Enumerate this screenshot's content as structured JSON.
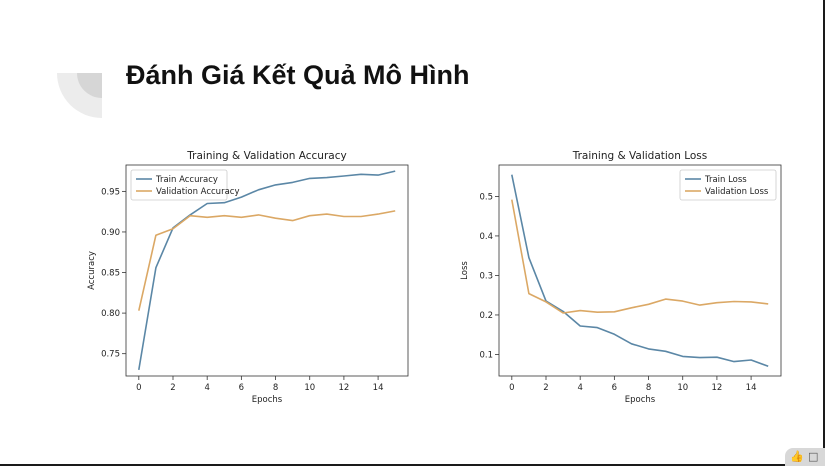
{
  "slide": {
    "title": "Đánh Giá Kết Quả Mô Hình"
  },
  "colors": {
    "train": "#5b87a6",
    "validation": "#dba865",
    "deco_light": "#ececec",
    "deco_dark": "#d6d6d6"
  },
  "icons": {
    "corner_left": "thumbs-up-icon",
    "corner_right": "comment-icon"
  },
  "chart_data": [
    {
      "type": "line",
      "title": "Training & Validation Accuracy",
      "xlabel": "Epochs",
      "ylabel": "Accuracy",
      "x": [
        0,
        1,
        2,
        3,
        4,
        5,
        6,
        7,
        8,
        9,
        10,
        11,
        12,
        13,
        14,
        15
      ],
      "xlim": [
        -0.75,
        15.75
      ],
      "ylim": [
        0.7225,
        0.9825
      ],
      "xticks": [
        0,
        2,
        4,
        6,
        8,
        10,
        12,
        14
      ],
      "yticks": [
        0.75,
        0.8,
        0.85,
        0.9,
        0.95
      ],
      "ytick_labels": [
        "0.75",
        "0.80",
        "0.85",
        "0.90",
        "0.95"
      ],
      "legend_position": "top-left",
      "grid": false,
      "series": [
        {
          "name": "Train Accuracy",
          "color": "#5b87a6",
          "values": [
            0.73,
            0.856,
            0.905,
            0.921,
            0.935,
            0.936,
            0.943,
            0.952,
            0.958,
            0.961,
            0.966,
            0.967,
            0.969,
            0.971,
            0.97,
            0.975
          ]
        },
        {
          "name": "Validation Accuracy",
          "color": "#dba865",
          "values": [
            0.803,
            0.896,
            0.904,
            0.92,
            0.918,
            0.92,
            0.918,
            0.921,
            0.917,
            0.914,
            0.92,
            0.922,
            0.919,
            0.919,
            0.922,
            0.926
          ]
        }
      ]
    },
    {
      "type": "line",
      "title": "Training & Validation Loss",
      "xlabel": "Epochs",
      "ylabel": "Loss",
      "x": [
        0,
        1,
        2,
        3,
        4,
        5,
        6,
        7,
        8,
        9,
        10,
        11,
        12,
        13,
        14,
        15
      ],
      "xlim": [
        -0.75,
        15.75
      ],
      "ylim": [
        0.0455,
        0.5795
      ],
      "xticks": [
        0,
        2,
        4,
        6,
        8,
        10,
        12,
        14
      ],
      "yticks": [
        0.1,
        0.2,
        0.3,
        0.4,
        0.5
      ],
      "ytick_labels": [
        "0.1",
        "0.2",
        "0.3",
        "0.4",
        "0.5"
      ],
      "legend_position": "top-right",
      "grid": false,
      "series": [
        {
          "name": "Train Loss",
          "color": "#5b87a6",
          "values": [
            0.555,
            0.345,
            0.235,
            0.209,
            0.172,
            0.168,
            0.151,
            0.127,
            0.114,
            0.108,
            0.095,
            0.092,
            0.093,
            0.082,
            0.086,
            0.07
          ]
        },
        {
          "name": "Validation Loss",
          "color": "#dba865",
          "values": [
            0.492,
            0.254,
            0.233,
            0.205,
            0.211,
            0.207,
            0.208,
            0.218,
            0.227,
            0.24,
            0.235,
            0.225,
            0.231,
            0.234,
            0.233,
            0.228
          ]
        }
      ]
    }
  ]
}
